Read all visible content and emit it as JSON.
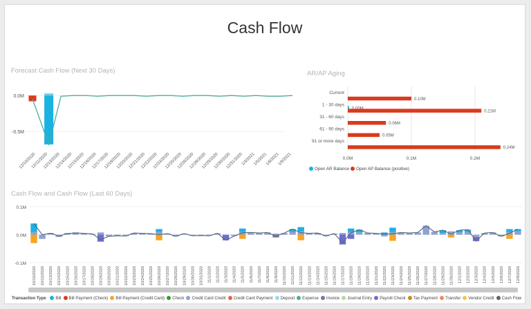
{
  "page": {
    "title": "Cash Flow"
  },
  "colors": {
    "teal_line": "#4bae9a",
    "cyan": "#1ab1e3",
    "red": "#d83b1e",
    "navy_line": "#5a6474",
    "axis_text": "#555555",
    "grid": "#e2e2e2"
  },
  "chart_data": [
    {
      "id": "forecast",
      "type": "bar",
      "title": "Forecast Cash Flow (Next 30 Days)",
      "categories": [
        "12/10/2020",
        "12/11/2020",
        "12/13/2020",
        "12/14/2020",
        "12/15/2020",
        "12/16/2020",
        "12/17/2020",
        "12/18/2020",
        "12/20/2020",
        "12/21/2020",
        "12/22/2020",
        "12/24/2020",
        "12/25/2020",
        "12/26/2020",
        "12/28/2020",
        "12/29/2020",
        "12/30/2020",
        "12/31/2020",
        "1/3/2021",
        "1/5/2021",
        "1/8/2021",
        "1/9/2021"
      ],
      "bars": [
        {
          "category": "12/10/2020",
          "value": -0.08,
          "color": "#d83b1e"
        },
        {
          "category": "12/11/2020",
          "value": -0.68,
          "color": "#1ab1e3"
        },
        {
          "category": "12/11/2020",
          "value": 0.03,
          "color": "#1ab1e3",
          "stacked_above": true
        }
      ],
      "line_values": [
        -0.05,
        -0.68,
        -0.01,
        0,
        0,
        -0.01,
        0,
        0,
        0,
        -0.01,
        0,
        0,
        -0.01,
        0,
        0,
        -0.01,
        0,
        -0.01,
        0,
        -0.01,
        -0.01,
        0
      ],
      "ylim": [
        -0.7,
        0.05
      ],
      "yticks": [
        {
          "value": 0,
          "label": "0.0M"
        },
        {
          "value": -0.5,
          "label": "-0.5M"
        }
      ]
    },
    {
      "id": "aging",
      "type": "bar",
      "orientation": "horizontal",
      "title": "AR/AP Aging",
      "categories": [
        "Current",
        "1 - 30 days",
        "31 - 60 days",
        "61 - 90 days",
        "91 or more days"
      ],
      "series": [
        {
          "name": "Open AR Balance",
          "color": "#1ab1e3",
          "values": [
            0,
            0.002,
            0,
            0,
            0
          ],
          "labels": [
            "",
            "0.00M",
            "",
            "",
            ""
          ]
        },
        {
          "name": "Open AP Balance (positive)",
          "color": "#d83b1e",
          "values": [
            0.1,
            0.21,
            0.06,
            0.05,
            0.24
          ],
          "labels": [
            "0.10M",
            "0.21M",
            "0.06M",
            "0.05M",
            "0.24M"
          ]
        }
      ],
      "xlim": [
        0,
        0.25
      ],
      "xticks": [
        {
          "value": 0,
          "label": "0.0M"
        },
        {
          "value": 0.1,
          "label": "0.1M"
        },
        {
          "value": 0.2,
          "label": "0.2M"
        }
      ],
      "legend": "bottom-left"
    },
    {
      "id": "cashflow60",
      "type": "bar",
      "stacked": true,
      "title": "Cash Flow and Cash Flow (Last 60 Days)",
      "categories": [
        "10/10/2020",
        "10/12/2020",
        "10/13/2020",
        "10/14/2020",
        "10/15/2020",
        "10/16/2020",
        "10/17/2020",
        "10/18/2020",
        "10/19/2020",
        "10/20/2020",
        "10/21/2020",
        "10/22/2020",
        "10/23/2020",
        "10/24/2020",
        "10/25/2020",
        "10/26/2020",
        "10/27/2020",
        "10/28/2020",
        "10/29/2020",
        "10/30/2020",
        "10/31/2020",
        "11/1/2020",
        "11/2/2020",
        "11/3/2020",
        "11/4/2020",
        "11/5/2020",
        "11/6/2020",
        "11/7/2020",
        "11/8/2020",
        "11/9/2020",
        "11/10/2020",
        "11/11/2020",
        "11/12/2020",
        "11/13/2020",
        "11/14/2020",
        "11/15/2020",
        "11/16/2020",
        "11/17/2020",
        "11/18/2020",
        "11/19/2020",
        "11/20/2020",
        "11/21/2020",
        "11/22/2020",
        "11/23/2020",
        "11/24/2020",
        "11/25/2020",
        "11/26/2020",
        "11/27/2020",
        "11/28/2020",
        "11/29/2020",
        "11/30/2020",
        "12/1/2020",
        "12/2/2020",
        "12/3/2020",
        "12/4/2020",
        "12/5/2020",
        "12/6/2020",
        "12/7/2020",
        "12/8/2020"
      ],
      "stacks": [
        [
          {
            "s": 1,
            "v": 0.01
          },
          {
            "s": 0,
            "v": 0.03
          },
          {
            "s": 2,
            "v": -0.03
          }
        ],
        [
          {
            "s": 1,
            "v": -0.015
          }
        ],
        [
          {
            "s": 1,
            "v": 0.006
          }
        ],
        [
          {
            "s": 1,
            "v": -0.008
          }
        ],
        [
          {
            "s": 1,
            "v": 0.006
          }
        ],
        [
          {
            "s": 1,
            "v": 0.008
          }
        ],
        [
          {
            "s": 1,
            "v": 0.005
          }
        ],
        [
          {
            "s": 1,
            "v": 0.003
          }
        ],
        [
          {
            "s": 1,
            "v": 0.008
          },
          {
            "s": 3,
            "v": -0.025
          }
        ],
        [
          {
            "s": 1,
            "v": -0.006
          }
        ],
        [
          {
            "s": 1,
            "v": -0.004
          }
        ],
        [
          {
            "s": 1,
            "v": -0.005
          }
        ],
        [
          {
            "s": 1,
            "v": 0.006
          }
        ],
        [
          {
            "s": 1,
            "v": 0.005
          }
        ],
        [
          {
            "s": 1,
            "v": 0.004
          }
        ],
        [
          {
            "s": 1,
            "v": 0.01
          },
          {
            "s": 0,
            "v": 0.01
          },
          {
            "s": 2,
            "v": -0.02
          }
        ],
        [
          {
            "s": 1,
            "v": 0.004
          }
        ],
        [
          {
            "s": 1,
            "v": -0.006
          }
        ],
        [
          {
            "s": 1,
            "v": 0.004
          }
        ],
        [
          {
            "s": 1,
            "v": -0.004
          }
        ],
        [
          {
            "s": 1,
            "v": -0.003
          }
        ],
        [
          {
            "s": 1,
            "v": -0.004
          }
        ],
        [
          {
            "s": 1,
            "v": 0.005
          }
        ],
        [
          {
            "s": 3,
            "v": -0.02
          }
        ],
        [
          {
            "s": 1,
            "v": -0.005
          }
        ],
        [
          {
            "s": 1,
            "v": 0.01
          },
          {
            "s": 0,
            "v": 0.012
          },
          {
            "s": 2,
            "v": -0.015
          }
        ],
        [
          {
            "s": 1,
            "v": 0.008
          }
        ],
        [
          {
            "s": 1,
            "v": 0.006
          }
        ],
        [
          {
            "s": 1,
            "v": 0.008
          }
        ],
        [
          {
            "s": 1,
            "v": 0.004
          },
          {
            "s": 5,
            "v": -0.01
          }
        ],
        [
          {
            "s": 1,
            "v": 0.006
          }
        ],
        [
          {
            "s": 1,
            "v": 0.01
          },
          {
            "s": 0,
            "v": 0.01
          }
        ],
        [
          {
            "s": 1,
            "v": 0.012
          },
          {
            "s": 0,
            "v": 0.015
          },
          {
            "s": 2,
            "v": -0.02
          }
        ],
        [
          {
            "s": 1,
            "v": 0.005
          }
        ],
        [
          {
            "s": 1,
            "v": 0.006
          }
        ],
        [
          {
            "s": 1,
            "v": -0.005
          }
        ],
        [
          {
            "s": 1,
            "v": 0.004
          }
        ],
        [
          {
            "s": 1,
            "v": 0.006
          },
          {
            "s": 3,
            "v": -0.035
          }
        ],
        [
          {
            "s": 1,
            "v": 0.01
          },
          {
            "s": 0,
            "v": 0.012
          },
          {
            "s": 3,
            "v": -0.015
          }
        ],
        [
          {
            "s": 1,
            "v": 0.008
          },
          {
            "s": 0,
            "v": 0.01
          }
        ],
        [
          {
            "s": 1,
            "v": 0.006
          }
        ],
        [
          {
            "s": 1,
            "v": 0.005
          }
        ],
        [
          {
            "s": 1,
            "v": -0.006
          },
          {
            "s": 0,
            "v": 0.008
          }
        ],
        [
          {
            "s": 1,
            "v": 0.01
          },
          {
            "s": 0,
            "v": 0.015
          },
          {
            "s": 2,
            "v": -0.022
          }
        ],
        [
          {
            "s": 1,
            "v": 0.008
          }
        ],
        [
          {
            "s": 1,
            "v": 0.006
          }
        ],
        [
          {
            "s": 1,
            "v": 0.008
          }
        ],
        [
          {
            "s": 1,
            "v": 0.032
          }
        ],
        [
          {
            "s": 1,
            "v": 0.01
          }
        ],
        [
          {
            "s": 1,
            "v": 0.006
          },
          {
            "s": 0,
            "v": 0.01
          }
        ],
        [
          {
            "s": 1,
            "v": 0.012
          },
          {
            "s": 2,
            "v": -0.01
          }
        ],
        [
          {
            "s": 1,
            "v": 0.008
          },
          {
            "s": 0,
            "v": 0.008
          }
        ],
        [
          {
            "s": 1,
            "v": 0.01
          },
          {
            "s": 0,
            "v": 0.008
          }
        ],
        [
          {
            "s": 1,
            "v": -0.008
          },
          {
            "s": 3,
            "v": -0.015
          }
        ],
        [
          {
            "s": 1,
            "v": 0.006
          }
        ],
        [
          {
            "s": 1,
            "v": 0.008
          }
        ],
        [
          {
            "s": 1,
            "v": -0.006
          }
        ],
        [
          {
            "s": 1,
            "v": 0.01
          },
          {
            "s": 0,
            "v": 0.01
          },
          {
            "s": 2,
            "v": -0.015
          }
        ],
        [
          {
            "s": 1,
            "v": 0.012
          },
          {
            "s": 0,
            "v": 0.008
          }
        ]
      ],
      "line_values": [
        0.04,
        0.0,
        0.005,
        -0.005,
        0.004,
        0.006,
        0.005,
        0.003,
        -0.017,
        -0.006,
        -0.004,
        -0.005,
        0.006,
        0.005,
        0.004,
        0.0,
        0.004,
        -0.006,
        0.004,
        -0.004,
        -0.003,
        -0.004,
        0.005,
        -0.02,
        -0.005,
        0.007,
        0.008,
        0.006,
        0.008,
        -0.006,
        0.006,
        0.02,
        0.007,
        0.005,
        0.006,
        -0.005,
        0.004,
        -0.029,
        0.007,
        0.018,
        0.006,
        0.005,
        0.002,
        0.003,
        0.008,
        0.006,
        0.008,
        0.032,
        0.01,
        0.016,
        0.002,
        0.016,
        0.018,
        -0.023,
        0.006,
        0.008,
        -0.006,
        0.005,
        0.02
      ],
      "series_colors": [
        "#1ab1e3",
        "#8fa3d1",
        "#f5a623",
        "#6c6fd1",
        "#d83b1e",
        "#7a8799"
      ],
      "ylim": [
        -0.1,
        0.1
      ],
      "yticks": [
        {
          "value": 0.1,
          "label": "0.1M"
        },
        {
          "value": 0,
          "label": "0.0M"
        },
        {
          "value": -0.1,
          "label": "-0.1M"
        }
      ]
    }
  ],
  "legend": {
    "title": "Transaction Type",
    "items": [
      {
        "name": "Bill",
        "color": "#1ab1e3"
      },
      {
        "name": "Bill Payment (Check)",
        "color": "#d83b1e"
      },
      {
        "name": "Bill Payment (Credit Card)",
        "color": "#f5a623"
      },
      {
        "name": "Check",
        "color": "#2ca02c"
      },
      {
        "name": "Credit Card Credit",
        "color": "#8fa3d1"
      },
      {
        "name": "Credit Card Payment",
        "color": "#e8604c"
      },
      {
        "name": "Deposit",
        "color": "#9ad9e8"
      },
      {
        "name": "Expense",
        "color": "#4bae9a"
      },
      {
        "name": "Invoice",
        "color": "#6c7a9c"
      },
      {
        "name": "Journal Entry",
        "color": "#b3d9a0"
      },
      {
        "name": "Payroll Check",
        "color": "#6c6fd1"
      },
      {
        "name": "Tax Payment",
        "color": "#c98a1e"
      },
      {
        "name": "Transfer",
        "color": "#f08a5d"
      },
      {
        "name": "Vendor Credit",
        "color": "#f5c542"
      },
      {
        "name": "Cash Flow",
        "color": "#5a6474"
      }
    ]
  }
}
